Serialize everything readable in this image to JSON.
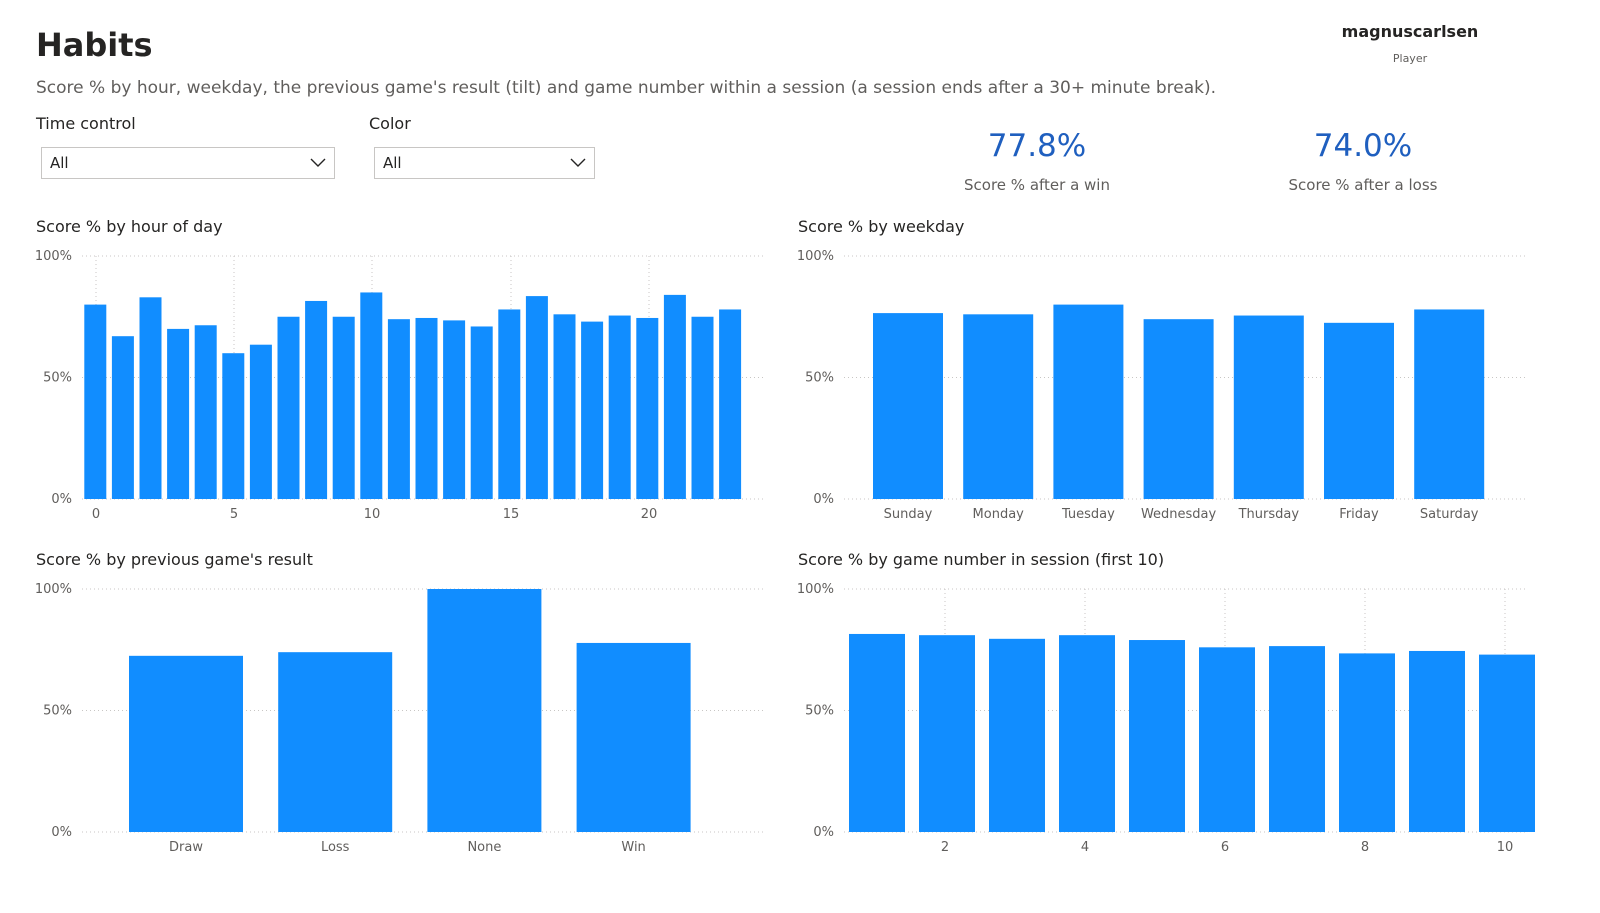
{
  "header": {
    "title": "Habits",
    "subtitle": "Score % by hour, weekday, the previous game's result (tilt) and game number within a session (a session ends after a 30+ minute break)."
  },
  "player": {
    "name": "magnuscarlsen",
    "caption": "Player"
  },
  "filters": {
    "time_control": {
      "label": "Time control",
      "value": "All"
    },
    "color": {
      "label": "Color",
      "value": "All"
    }
  },
  "kpis": [
    {
      "value": "77.8%",
      "label": "Score % after a win"
    },
    {
      "value": "74.0%",
      "label": "Score % after a loss"
    }
  ],
  "colors": {
    "bar": "#118dff",
    "kpi": "#1f5fbf",
    "grid": "#c8c6c4"
  },
  "chart_data": [
    {
      "id": "hour",
      "type": "bar",
      "title": "Score % by hour of day",
      "categories": [
        0,
        1,
        2,
        3,
        4,
        5,
        6,
        7,
        8,
        9,
        10,
        11,
        12,
        13,
        14,
        15,
        16,
        17,
        18,
        19,
        20,
        21,
        22,
        23
      ],
      "x_tick_labels": [
        "0",
        "5",
        "10",
        "15",
        "20"
      ],
      "values": [
        80,
        67,
        83,
        70,
        71.5,
        60,
        63.5,
        75,
        81.5,
        75,
        85,
        74,
        74.5,
        73.5,
        71,
        78,
        83.5,
        76,
        73,
        75.5,
        74.5,
        84,
        75,
        78
      ],
      "ylim": [
        0,
        100
      ],
      "y_tick_labels": [
        "0%",
        "50%",
        "100%"
      ],
      "grid": true
    },
    {
      "id": "weekday",
      "type": "bar",
      "title": "Score % by weekday",
      "categories": [
        "Sunday",
        "Monday",
        "Tuesday",
        "Wednesday",
        "Thursday",
        "Friday",
        "Saturday"
      ],
      "values": [
        76.5,
        76,
        80,
        74,
        75.5,
        72.5,
        78
      ],
      "ylim": [
        0,
        100
      ],
      "y_tick_labels": [
        "0%",
        "50%",
        "100%"
      ],
      "grid": true
    },
    {
      "id": "previous",
      "type": "bar",
      "title": "Score % by previous game's result",
      "categories": [
        "Draw",
        "Loss",
        "None",
        "Win"
      ],
      "values": [
        72.5,
        74,
        100,
        77.8
      ],
      "ylim": [
        0,
        100
      ],
      "y_tick_labels": [
        "0%",
        "50%",
        "100%"
      ],
      "grid": true
    },
    {
      "id": "session",
      "type": "bar",
      "title": "Score % by game number in session (first 10)",
      "categories": [
        1,
        2,
        3,
        4,
        5,
        6,
        7,
        8,
        9,
        10
      ],
      "x_tick_labels": [
        "2",
        "4",
        "6",
        "8",
        "10"
      ],
      "values": [
        81.5,
        81,
        79.5,
        81,
        79,
        76,
        76.5,
        73.5,
        74.5,
        73
      ],
      "ylim": [
        0,
        100
      ],
      "y_tick_labels": [
        "0%",
        "50%",
        "100%"
      ],
      "grid": true
    }
  ]
}
